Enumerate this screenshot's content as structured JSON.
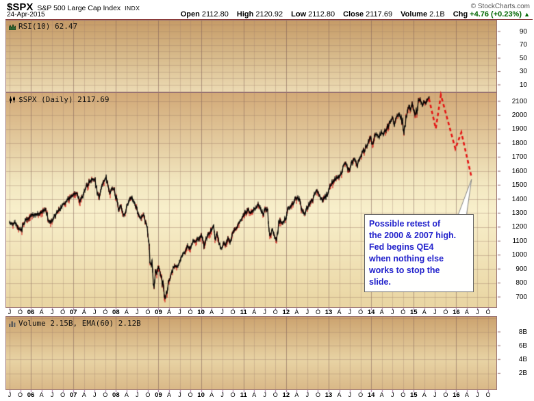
{
  "header": {
    "symbol": "$SPX",
    "name": "S&P 500 Large Cap Index",
    "exchange": "INDX",
    "date": "24-Apr-2015",
    "copyright": "© StockCharts.com",
    "quote": {
      "open_label": "Open",
      "open": "2112.80",
      "high_label": "High",
      "high": "2120.92",
      "low_label": "Low",
      "low": "2112.80",
      "close_label": "Close",
      "close": "2117.69",
      "volume_label": "Volume",
      "volume": "2.1B",
      "chg_label": "Chg",
      "chg": "+4.76 (+0.23%)",
      "chg_arrow": "▲",
      "chg_color": "#006600"
    }
  },
  "panels": {
    "rsi": {
      "label": "RSI(10) 62.47"
    },
    "price": {
      "label": "$SPX (Daily) 2117.69"
    },
    "volume": {
      "label": "Volume 2.15B, EMA(60) 2.12B"
    }
  },
  "annotation": {
    "lines": [
      "Possible retest of",
      "the 2000 & 2007 high.",
      "Fed begins QE4",
      "when nothing else",
      "works to stop the",
      "slide."
    ],
    "text_color": "#2222cc"
  },
  "chart_data": {
    "type": "line",
    "title": "$SPX (Daily) 2117.69",
    "x_tick_labels": [
      "J",
      "O",
      "06",
      "A",
      "J",
      "O",
      "07",
      "A",
      "J",
      "O",
      "08",
      "A",
      "J",
      "O",
      "09",
      "A",
      "J",
      "O",
      "10",
      "A",
      "J",
      "O",
      "11",
      "A",
      "J",
      "O",
      "12",
      "A",
      "J",
      "O",
      "13",
      "A",
      "J",
      "O",
      "14",
      "A",
      "J",
      "O",
      "15",
      "A",
      "J",
      "O",
      "16",
      "A",
      "J",
      "O"
    ],
    "x_first_label_year": 2005.5,
    "price_axis_ticks": [
      2100,
      2000,
      1900,
      1800,
      1700,
      1600,
      1500,
      1400,
      1300,
      1200,
      1100,
      1000,
      900,
      800,
      700
    ],
    "rsi_panel": {
      "period": 10,
      "value": 62.47,
      "ticks": [
        90,
        70,
        50,
        30,
        10
      ]
    },
    "volume_panel": {
      "volume": "2.15B",
      "ema60": "2.12B",
      "ticks": [
        {
          "label": "8B",
          "v": 8
        },
        {
          "label": "6B",
          "v": 6
        },
        {
          "label": "4B",
          "v": 4
        },
        {
          "label": "2B",
          "v": 2
        }
      ]
    },
    "price_series": {
      "name": "$SPX daily close (approx.)",
      "points": [
        [
          2005.5,
          1235
        ],
        [
          2005.56,
          1219
        ],
        [
          2005.62,
          1231
        ],
        [
          2005.7,
          1196
        ],
        [
          2005.78,
          1178
        ],
        [
          2005.86,
          1249
        ],
        [
          2005.94,
          1255
        ],
        [
          2006.02,
          1285
        ],
        [
          2006.1,
          1288
        ],
        [
          2006.18,
          1295
        ],
        [
          2006.26,
          1306
        ],
        [
          2006.34,
          1326
        ],
        [
          2006.42,
          1245
        ],
        [
          2006.48,
          1236
        ],
        [
          2006.54,
          1270
        ],
        [
          2006.62,
          1303
        ],
        [
          2006.7,
          1336
        ],
        [
          2006.78,
          1365
        ],
        [
          2006.86,
          1389
        ],
        [
          2006.94,
          1418
        ],
        [
          2007.02,
          1431
        ],
        [
          2007.08,
          1446
        ],
        [
          2007.14,
          1377
        ],
        [
          2007.22,
          1424
        ],
        [
          2007.3,
          1484
        ],
        [
          2007.38,
          1525
        ],
        [
          2007.44,
          1539
        ],
        [
          2007.5,
          1553
        ],
        [
          2007.56,
          1465
        ],
        [
          2007.61,
          1406
        ],
        [
          2007.66,
          1474
        ],
        [
          2007.72,
          1526
        ],
        [
          2007.77,
          1562
        ],
        [
          2007.82,
          1465
        ],
        [
          2007.86,
          1445
        ],
        [
          2007.91,
          1484
        ],
        [
          2007.96,
          1468
        ],
        [
          2008.02,
          1395
        ],
        [
          2008.06,
          1330
        ],
        [
          2008.12,
          1349
        ],
        [
          2008.18,
          1276
        ],
        [
          2008.24,
          1322
        ],
        [
          2008.3,
          1370
        ],
        [
          2008.36,
          1413
        ],
        [
          2008.42,
          1385
        ],
        [
          2008.48,
          1335
        ],
        [
          2008.53,
          1280
        ],
        [
          2008.58,
          1262
        ],
        [
          2008.64,
          1293
        ],
        [
          2008.68,
          1255
        ],
        [
          2008.72,
          1213
        ],
        [
          2008.75,
          1165
        ],
        [
          2008.78,
          1057
        ],
        [
          2008.81,
          910
        ],
        [
          2008.84,
          985
        ],
        [
          2008.87,
          850
        ],
        [
          2008.9,
          756
        ],
        [
          2008.93,
          890
        ],
        [
          2008.96,
          873
        ],
        [
          2009.0,
          928
        ],
        [
          2009.04,
          868
        ],
        [
          2009.08,
          827
        ],
        [
          2009.12,
          750
        ],
        [
          2009.16,
          679
        ],
        [
          2009.2,
          740
        ],
        [
          2009.24,
          815
        ],
        [
          2009.28,
          843
        ],
        [
          2009.33,
          882
        ],
        [
          2009.38,
          930
        ],
        [
          2009.43,
          912
        ],
        [
          2009.48,
          923
        ],
        [
          2009.53,
          992
        ],
        [
          2009.58,
          1010
        ],
        [
          2009.63,
          1026
        ],
        [
          2009.68,
          1068
        ],
        [
          2009.72,
          1043
        ],
        [
          2009.77,
          1071
        ],
        [
          2009.82,
          1100
        ],
        [
          2009.87,
          1093
        ],
        [
          2009.92,
          1112
        ],
        [
          2009.97,
          1124
        ],
        [
          2010.02,
          1146
        ],
        [
          2010.07,
          1066
        ],
        [
          2010.12,
          1108
        ],
        [
          2010.18,
          1152
        ],
        [
          2010.24,
          1180
        ],
        [
          2010.29,
          1212
        ],
        [
          2010.34,
          1110
        ],
        [
          2010.38,
          1160
        ],
        [
          2010.43,
          1080
        ],
        [
          2010.49,
          1040
        ],
        [
          2010.53,
          1095
        ],
        [
          2010.58,
          1062
        ],
        [
          2010.63,
          1122
        ],
        [
          2010.68,
          1090
        ],
        [
          2010.73,
          1143
        ],
        [
          2010.78,
          1177
        ],
        [
          2010.84,
          1196
        ],
        [
          2010.89,
          1222
        ],
        [
          2010.95,
          1249
        ],
        [
          2011.0,
          1280
        ],
        [
          2011.06,
          1310
        ],
        [
          2011.11,
          1330
        ],
        [
          2011.16,
          1300
        ],
        [
          2011.22,
          1320
        ],
        [
          2011.28,
          1338
        ],
        [
          2011.34,
          1363
        ],
        [
          2011.4,
          1330
        ],
        [
          2011.46,
          1288
        ],
        [
          2011.51,
          1335
        ],
        [
          2011.56,
          1318
        ],
        [
          2011.6,
          1210
        ],
        [
          2011.63,
          1130
        ],
        [
          2011.67,
          1190
        ],
        [
          2011.71,
          1160
        ],
        [
          2011.74,
          1135
        ],
        [
          2011.78,
          1110
        ],
        [
          2011.82,
          1195
        ],
        [
          2011.86,
          1260
        ],
        [
          2011.9,
          1220
        ],
        [
          2011.94,
          1248
        ],
        [
          2011.98,
          1260
        ],
        [
          2012.04,
          1315
        ],
        [
          2012.1,
          1350
        ],
        [
          2012.16,
          1368
        ],
        [
          2012.22,
          1405
        ],
        [
          2012.28,
          1415
        ],
        [
          2012.33,
          1370
        ],
        [
          2012.38,
          1335
        ],
        [
          2012.43,
          1290
        ],
        [
          2012.48,
          1330
        ],
        [
          2012.53,
          1362
        ],
        [
          2012.58,
          1380
        ],
        [
          2012.63,
          1405
        ],
        [
          2012.68,
          1435
        ],
        [
          2012.72,
          1462
        ],
        [
          2012.77,
          1445
        ],
        [
          2012.82,
          1415
        ],
        [
          2012.86,
          1390
        ],
        [
          2012.9,
          1410
        ],
        [
          2012.95,
          1422
        ],
        [
          2013.0,
          1462
        ],
        [
          2013.05,
          1500
        ],
        [
          2013.1,
          1520
        ],
        [
          2013.15,
          1540
        ],
        [
          2013.2,
          1555
        ],
        [
          2013.26,
          1565
        ],
        [
          2013.31,
          1585
        ],
        [
          2013.36,
          1635
        ],
        [
          2013.41,
          1665
        ],
        [
          2013.45,
          1620
        ],
        [
          2013.5,
          1608
        ],
        [
          2013.55,
          1660
        ],
        [
          2013.6,
          1690
        ],
        [
          2013.64,
          1655
        ],
        [
          2013.68,
          1635
        ],
        [
          2013.73,
          1690
        ],
        [
          2013.78,
          1725
        ],
        [
          2013.83,
          1745
        ],
        [
          2013.88,
          1780
        ],
        [
          2013.93,
          1808
        ],
        [
          2013.98,
          1842
        ],
        [
          2014.03,
          1790
        ],
        [
          2014.08,
          1838
        ],
        [
          2014.13,
          1868
        ],
        [
          2014.18,
          1845
        ],
        [
          2014.24,
          1880
        ],
        [
          2014.29,
          1865
        ],
        [
          2014.34,
          1895
        ],
        [
          2014.4,
          1925
        ],
        [
          2014.45,
          1960
        ],
        [
          2014.5,
          1978
        ],
        [
          2014.55,
          1930
        ],
        [
          2014.6,
          1988
        ],
        [
          2014.65,
          2005
        ],
        [
          2014.7,
          1972
        ],
        [
          2014.74,
          1940
        ],
        [
          2014.77,
          1865
        ],
        [
          2014.81,
          1965
        ],
        [
          2014.85,
          2030
        ],
        [
          2014.89,
          2068
        ],
        [
          2014.92,
          2030
        ],
        [
          2014.96,
          2082
        ],
        [
          2015.0,
          2058
        ],
        [
          2015.04,
          1995
        ],
        [
          2015.08,
          2050
        ],
        [
          2015.12,
          2100
        ],
        [
          2015.16,
          2110
        ],
        [
          2015.2,
          2068
        ],
        [
          2015.24,
          2100
        ],
        [
          2015.28,
          2085
        ],
        [
          2015.32,
          2108
        ],
        [
          2015.36,
          2118
        ]
      ]
    },
    "projection": {
      "name": "Possible retest projection",
      "style": "dashed",
      "color": "#e41414",
      "points": [
        [
          2015.36,
          2118
        ],
        [
          2015.52,
          1905
        ],
        [
          2015.64,
          2145
        ],
        [
          2015.98,
          1760
        ],
        [
          2016.12,
          1878
        ],
        [
          2016.36,
          1556
        ]
      ]
    },
    "annotation_text": "Possible retest of the 2000 & 2007 high. Fed begins QE4 when nothing else works to stop the slide."
  }
}
